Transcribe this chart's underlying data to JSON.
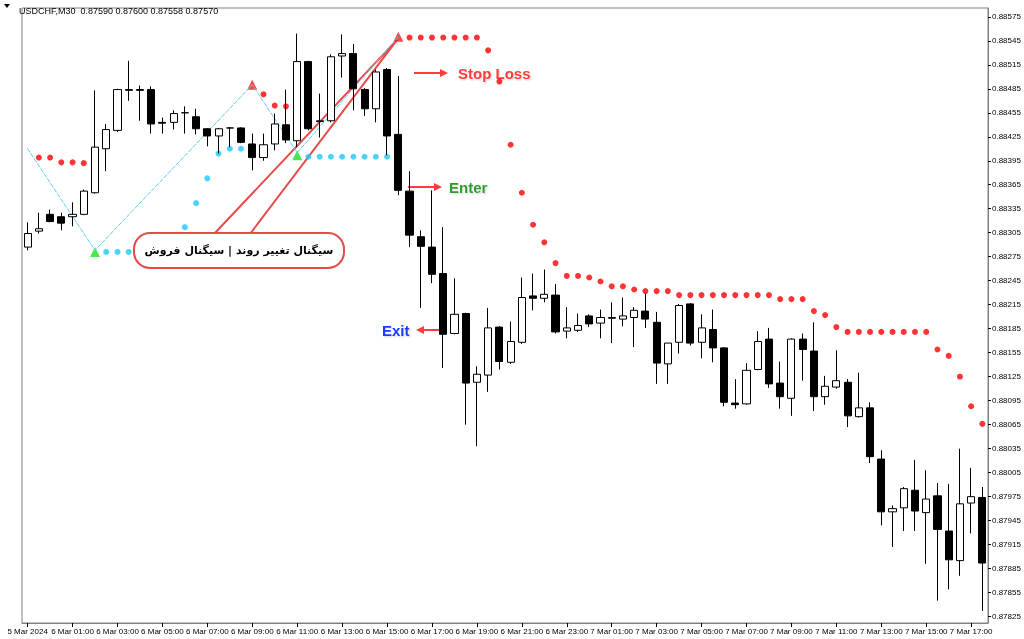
{
  "chart_data": {
    "type": "candlestick",
    "title": "USDCHF,M30  0.87590 0.87600 0.87558 0.87570",
    "color": "#000000",
    "categories": [
      "5 Mar 2024",
      null,
      null,
      null,
      "6 Mar 01:00",
      null,
      null,
      null,
      "6 Mar 03:00",
      null,
      null,
      null,
      "6 Mar 05:00",
      null,
      null,
      null,
      "6 Mar 07:00",
      null,
      null,
      null,
      "6 Mar 09:00",
      null,
      null,
      null,
      "6 Mar 11:00",
      null,
      null,
      null,
      "6 Mar 13:00",
      null,
      null,
      null,
      "6 Mar 15:00",
      null,
      null,
      null,
      "6 Mar 17:00",
      null,
      null,
      null,
      "6 Mar 19:00",
      null,
      null,
      null,
      "6 Mar 21:00",
      null,
      null,
      null,
      "6 Mar 23:00",
      null,
      null,
      null,
      "7 Mar 01:00",
      null,
      null,
      null,
      "7 Mar 03:00",
      null,
      null,
      null,
      "7 Mar 05:00",
      null,
      null,
      null,
      "7 Mar 07:00",
      null,
      null,
      null,
      "7 Mar 09:00",
      null,
      null,
      null,
      "7 Mar 11:00",
      null,
      null,
      null,
      "7 Mar 13:00",
      null,
      null,
      null,
      "7 Mar 15:00",
      null,
      null,
      null,
      "7 Mar 17:00",
      null
    ],
    "ohlc": [
      [
        0.88287,
        0.88318,
        0.88283,
        0.88304
      ],
      [
        0.88307,
        0.8833,
        0.88304,
        0.8831
      ],
      [
        0.88328,
        0.88334,
        0.88318,
        0.88319
      ],
      [
        0.88325,
        0.8833,
        0.88308,
        0.88317
      ],
      [
        0.88325,
        0.88343,
        0.88313,
        0.88328
      ],
      [
        0.88328,
        0.88359,
        0.88327,
        0.88357
      ],
      [
        0.88355,
        0.88483,
        0.88354,
        0.88412
      ],
      [
        0.8841,
        0.88441,
        0.88382,
        0.88434
      ],
      [
        0.88433,
        0.88485,
        0.88431,
        0.88484
      ],
      [
        0.88483,
        0.8852,
        0.8847,
        0.88484
      ],
      [
        0.88484,
        0.88489,
        0.88445,
        0.88483
      ],
      [
        0.88484,
        0.88488,
        0.88429,
        0.88441
      ],
      [
        0.88443,
        0.88449,
        0.88429,
        0.88442
      ],
      [
        0.88443,
        0.88458,
        0.88434,
        0.88454
      ],
      [
        0.88455,
        0.88463,
        0.88429,
        0.88455
      ],
      [
        0.8845,
        0.8846,
        0.88428,
        0.88435
      ],
      [
        0.88435,
        0.88436,
        0.88413,
        0.88426
      ],
      [
        0.88426,
        0.88436,
        0.88404,
        0.88435
      ],
      [
        0.88436,
        0.88437,
        0.88412,
        0.88436
      ],
      [
        0.88436,
        0.88437,
        0.88417,
        0.88418
      ],
      [
        0.88416,
        0.88429,
        0.88383,
        0.88399
      ],
      [
        0.88399,
        0.88429,
        0.88395,
        0.88415
      ],
      [
        0.88416,
        0.88454,
        0.88408,
        0.88441
      ],
      [
        0.8844,
        0.88484,
        0.88417,
        0.88421
      ],
      [
        0.8842,
        0.88554,
        0.88412,
        0.88519
      ],
      [
        0.88519,
        0.8852,
        0.88433,
        0.88435
      ],
      [
        0.88444,
        0.88479,
        0.88424,
        0.88445
      ],
      [
        0.88445,
        0.88528,
        0.88443,
        0.88525
      ],
      [
        0.88526,
        0.88553,
        0.88499,
        0.88529
      ],
      [
        0.88529,
        0.88541,
        0.88458,
        0.88485
      ],
      [
        0.88484,
        0.88486,
        0.88451,
        0.8846
      ],
      [
        0.8846,
        0.88509,
        0.88443,
        0.88506
      ],
      [
        0.88509,
        0.88511,
        0.88402,
        0.88426
      ],
      [
        0.88428,
        0.88501,
        0.88352,
        0.88358
      ],
      [
        0.88357,
        0.88382,
        0.88287,
        0.88302
      ],
      [
        0.883,
        0.88308,
        0.88211,
        0.88288
      ],
      [
        0.88287,
        0.88358,
        0.88242,
        0.88253
      ],
      [
        0.88254,
        0.88312,
        0.88136,
        0.88178
      ],
      [
        0.88179,
        0.88248,
        0.88178,
        0.88203
      ],
      [
        0.88204,
        0.88205,
        0.88065,
        0.88117
      ],
      [
        0.88118,
        0.88138,
        0.88038,
        0.88128
      ],
      [
        0.88127,
        0.88211,
        0.88106,
        0.88186
      ],
      [
        0.88187,
        0.88188,
        0.88134,
        0.88144
      ],
      [
        0.88143,
        0.88194,
        0.88141,
        0.88169
      ],
      [
        0.88168,
        0.88249,
        0.88166,
        0.88224
      ],
      [
        0.88226,
        0.88254,
        0.88208,
        0.88223
      ],
      [
        0.88223,
        0.88259,
        0.88218,
        0.88228
      ],
      [
        0.88227,
        0.88241,
        0.88179,
        0.88181
      ],
      [
        0.88182,
        0.88212,
        0.88173,
        0.88186
      ],
      [
        0.88183,
        0.88204,
        0.88181,
        0.88189
      ],
      [
        0.88201,
        0.88203,
        0.88187,
        0.88191
      ],
      [
        0.88192,
        0.88209,
        0.88173,
        0.88199
      ],
      [
        0.88198,
        0.88218,
        0.88167,
        0.88199
      ],
      [
        0.88197,
        0.88224,
        0.88188,
        0.88201
      ],
      [
        0.88199,
        0.88212,
        0.88162,
        0.88208
      ],
      [
        0.88207,
        0.88229,
        0.88186,
        0.88197
      ],
      [
        0.88193,
        0.88206,
        0.88116,
        0.88142
      ],
      [
        0.88141,
        0.88167,
        0.88116,
        0.88167
      ],
      [
        0.88168,
        0.88216,
        0.88154,
        0.88214
      ],
      [
        0.88216,
        0.88217,
        0.88164,
        0.88167
      ],
      [
        0.88168,
        0.88203,
        0.88148,
        0.88186
      ],
      [
        0.88184,
        0.88209,
        0.88143,
        0.88161
      ],
      [
        0.88161,
        0.88162,
        0.88088,
        0.88093
      ],
      [
        0.88092,
        0.88122,
        0.88085,
        0.8809
      ],
      [
        0.88091,
        0.88142,
        0.8809,
        0.88133
      ],
      [
        0.88134,
        0.88182,
        0.88133,
        0.88169
      ],
      [
        0.88172,
        0.88186,
        0.88111,
        0.88116
      ],
      [
        0.88117,
        0.88144,
        0.88085,
        0.881
      ],
      [
        0.88098,
        0.88173,
        0.88076,
        0.88172
      ],
      [
        0.88172,
        0.88179,
        0.8812,
        0.88159
      ],
      [
        0.88157,
        0.88193,
        0.88082,
        0.881
      ],
      [
        0.881,
        0.88126,
        0.8809,
        0.88113
      ],
      [
        0.88112,
        0.88158,
        0.8811,
        0.8812
      ],
      [
        0.88118,
        0.88122,
        0.88062,
        0.88076
      ],
      [
        0.88075,
        0.8813,
        0.88074,
        0.88086
      ],
      [
        0.88086,
        0.88093,
        0.88017,
        0.88025
      ],
      [
        0.88022,
        0.88033,
        0.87939,
        0.87956
      ],
      [
        0.87956,
        0.87964,
        0.87912,
        0.8796
      ],
      [
        0.87961,
        0.87987,
        0.87932,
        0.87985
      ],
      [
        0.87983,
        0.88021,
        0.87932,
        0.87957
      ],
      [
        0.87955,
        0.88008,
        0.87891,
        0.87972
      ],
      [
        0.87976,
        0.87992,
        0.87845,
        0.87934
      ],
      [
        0.87932,
        0.87991,
        0.87859,
        0.87896
      ],
      [
        0.87895,
        0.88035,
        0.87876,
        0.87966
      ],
      [
        0.87967,
        0.88011,
        0.87929,
        0.87975
      ],
      [
        0.87974,
        0.87987,
        0.87832,
        0.87892
      ]
    ],
    "series": [
      {
        "type": "scatter",
        "marker": "circle",
        "color": "#ff0000",
        "values": [
          null,
          0.88399,
          0.88399,
          0.88393,
          0.88393,
          0.88392,
          null,
          null,
          null,
          null,
          null,
          null,
          null,
          null,
          null,
          null,
          null,
          null,
          null,
          null,
          null,
          0.88478,
          0.88464,
          0.88463,
          null,
          null,
          null,
          null,
          null,
          null,
          null,
          null,
          null,
          null,
          0.88549,
          0.88549,
          0.88549,
          0.88549,
          0.88549,
          0.88549,
          0.88549,
          0.88533,
          0.88494,
          0.88415,
          0.88355,
          0.88315,
          0.88293,
          0.88267,
          0.88251,
          0.88251,
          0.88249,
          0.88244,
          0.88238,
          0.88238,
          0.88234,
          0.88232,
          0.88232,
          0.88232,
          0.88227,
          0.88227,
          0.88227,
          0.88227,
          0.88227,
          0.88227,
          0.88227,
          0.88227,
          0.88227,
          0.88222,
          0.88222,
          0.88222,
          0.88207,
          0.88202,
          0.88187,
          0.88181,
          0.88181,
          0.88181,
          0.88181,
          0.88181,
          0.88181,
          0.88181,
          0.88181,
          0.88159,
          0.88151,
          0.88125,
          0.88088,
          0.88066
        ]
      },
      {
        "type": "scatter",
        "marker": "circle",
        "color": "#1ec8ff",
        "values": [
          null,
          null,
          null,
          null,
          null,
          null,
          null,
          0.88281,
          0.88281,
          0.88281,
          null,
          null,
          null,
          null,
          0.88312,
          0.88342,
          0.88373,
          0.88404,
          0.8841,
          0.8841,
          null,
          null,
          null,
          null,
          null,
          0.884,
          0.884,
          0.884,
          0.884,
          0.884,
          0.884,
          0.884,
          0.884,
          null,
          null,
          null,
          null,
          null,
          null,
          null,
          null,
          null,
          null,
          null,
          null,
          null,
          null,
          null,
          null,
          null,
          null,
          null,
          null,
          null,
          null,
          null,
          null,
          null,
          null,
          null,
          null,
          null,
          null,
          null,
          null,
          null,
          null,
          null,
          null,
          null,
          null,
          null,
          null,
          null,
          null,
          null,
          null,
          null,
          null,
          null,
          null,
          null,
          null,
          null,
          null,
          null
        ]
      },
      {
        "type": "line",
        "line_style": "dashed",
        "color": "#5ccbf0",
        "values": [
          0.8841,
          null,
          null,
          null,
          null,
          null,
          0.88283,
          null,
          null,
          null,
          null,
          null,
          null,
          null,
          null,
          null,
          null,
          null,
          null,
          null,
          0.8849,
          null,
          null,
          null,
          0.88405,
          null,
          null,
          null,
          null,
          null,
          null,
          null,
          null,
          0.8855,
          null,
          null,
          null,
          null,
          null,
          null,
          null,
          null,
          null,
          null,
          null,
          null,
          null,
          null,
          null,
          null,
          null,
          null,
          null,
          null,
          null,
          null,
          null,
          null,
          null,
          null,
          null,
          null,
          null,
          null,
          null,
          null,
          null,
          null,
          null,
          null,
          null,
          null,
          null,
          null,
          null,
          null,
          null,
          null,
          null,
          null,
          null,
          null,
          null,
          null,
          null,
          null
        ]
      },
      {
        "type": "scatter",
        "marker": "triangle",
        "color": "#ff1a1a",
        "values": [
          null,
          null,
          null,
          null,
          null,
          null,
          null,
          null,
          null,
          null,
          null,
          null,
          null,
          null,
          null,
          null,
          null,
          null,
          null,
          null,
          0.8849,
          null,
          null,
          null,
          null,
          null,
          null,
          null,
          null,
          null,
          null,
          null,
          null,
          0.8855,
          null,
          null,
          null,
          null,
          null,
          null,
          null,
          null,
          null,
          null,
          null,
          null,
          null,
          null,
          null,
          null,
          null,
          null,
          null,
          null,
          null,
          null,
          null,
          null,
          null,
          null,
          null,
          null,
          null,
          null,
          null,
          null,
          null,
          null,
          null,
          null,
          null,
          null,
          null,
          null,
          null,
          null,
          null,
          null,
          null,
          null,
          null,
          null,
          null,
          null,
          null,
          null
        ]
      },
      {
        "type": "scatter",
        "marker": "triangle",
        "color": "#22e022",
        "values": [
          null,
          null,
          null,
          null,
          null,
          null,
          0.88281,
          null,
          null,
          null,
          null,
          null,
          null,
          null,
          null,
          null,
          null,
          null,
          null,
          null,
          null,
          null,
          null,
          null,
          0.88402,
          null,
          null,
          null,
          null,
          null,
          null,
          null,
          null,
          null,
          null,
          null,
          null,
          null,
          null,
          null,
          null,
          null,
          null,
          null,
          null,
          null,
          null,
          null,
          null,
          null,
          null,
          null,
          null,
          null,
          null,
          null,
          null,
          null,
          null,
          null,
          null,
          null,
          null,
          null,
          null,
          null,
          null,
          null,
          null,
          null,
          null,
          null,
          null,
          null,
          null,
          null,
          null,
          null,
          null,
          null,
          null,
          null,
          null,
          null,
          null,
          null
        ]
      }
    ],
    "ylim": [
      0.87817,
      0.88586
    ],
    "yticks": [
      0.88575,
      0.88545,
      0.88515,
      0.88485,
      0.88455,
      0.88425,
      0.88395,
      0.88365,
      0.88335,
      0.88305,
      0.88275,
      0.88245,
      0.88215,
      0.88185,
      0.88155,
      0.88125,
      0.88095,
      0.88065,
      0.88035,
      0.88005,
      0.87975,
      0.87945,
      0.87915,
      0.87885,
      0.87855,
      0.87825
    ],
    "annotations": [
      "Stop Loss",
      "Enter",
      "Exit",
      "سیگنال تغییر روند | سیگنال فروش"
    ]
  }
}
